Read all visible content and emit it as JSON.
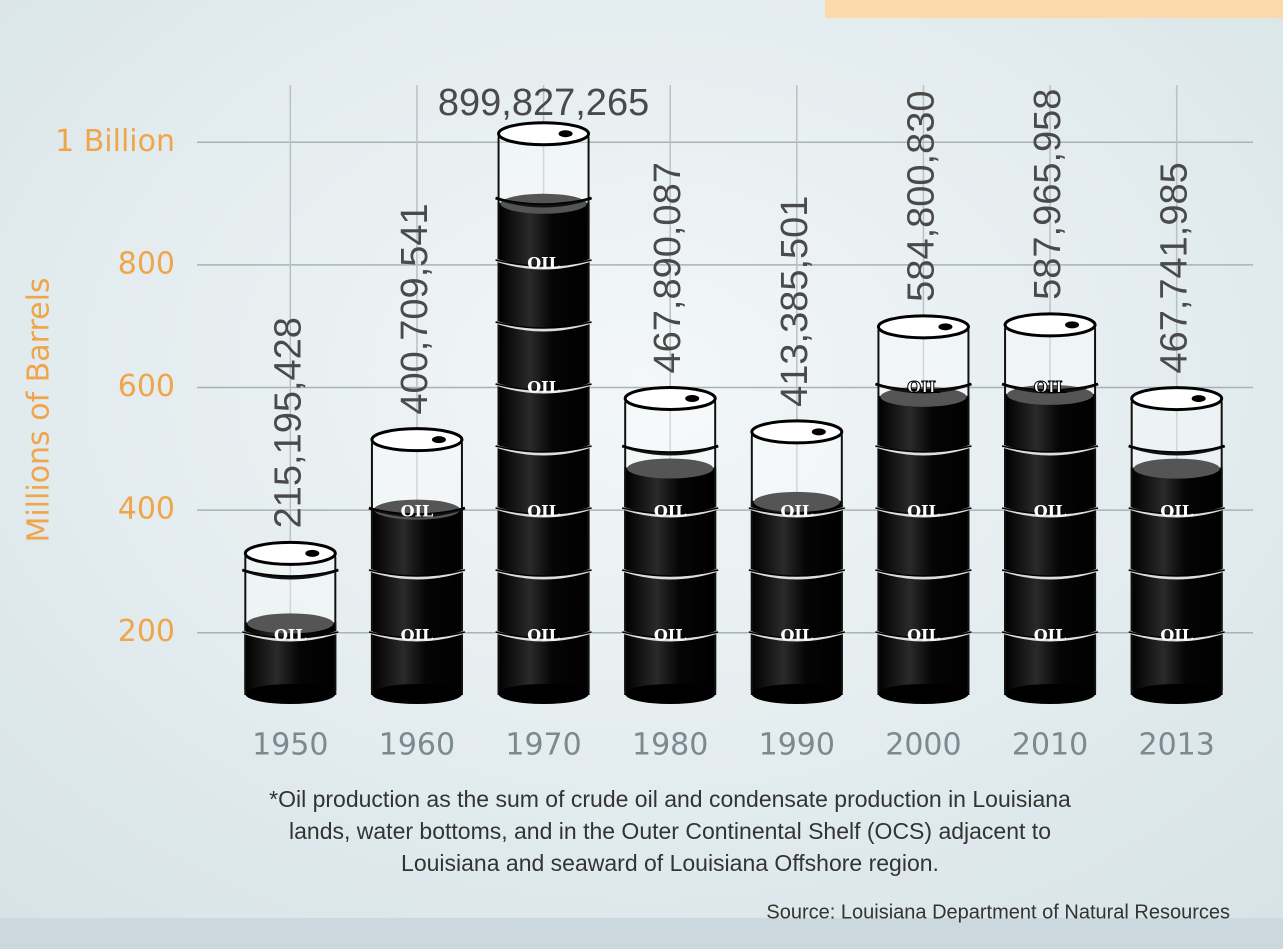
{
  "chart_data": {
    "type": "barrel",
    "y_axis_label": "Millions of Barrels",
    "categories": [
      "1950",
      "1960",
      "1970",
      "1980",
      "1990",
      "2000",
      "2010",
      "2013"
    ],
    "values": [
      215.195428,
      400.709541,
      899.827265,
      467.890087,
      413.385501,
      584.80083,
      587.965958,
      467.741985
    ],
    "value_labels": [
      "215,195,428",
      "400,709,541",
      "899,827,265",
      "467,890,087",
      "413,385,501",
      "584,800,830",
      "587,965,958",
      "467,741,985"
    ],
    "color": "#111111",
    "ylim": [
      100,
      1100
    ],
    "yticks": [
      200,
      400,
      600,
      800,
      {
        "value": 1000,
        "label": "1 Billion"
      }
    ],
    "grid": true,
    "footnote": [
      "*Oil production as the sum of crude oil and condensate production in Louisiana",
      "lands, water bottoms, and in the Outer Continental Shelf (OCS) adjacent to",
      "Louisiana and seaward of Louisiana Offshore region."
    ],
    "source": "Source: Louisiana Department of Natural Resources"
  }
}
